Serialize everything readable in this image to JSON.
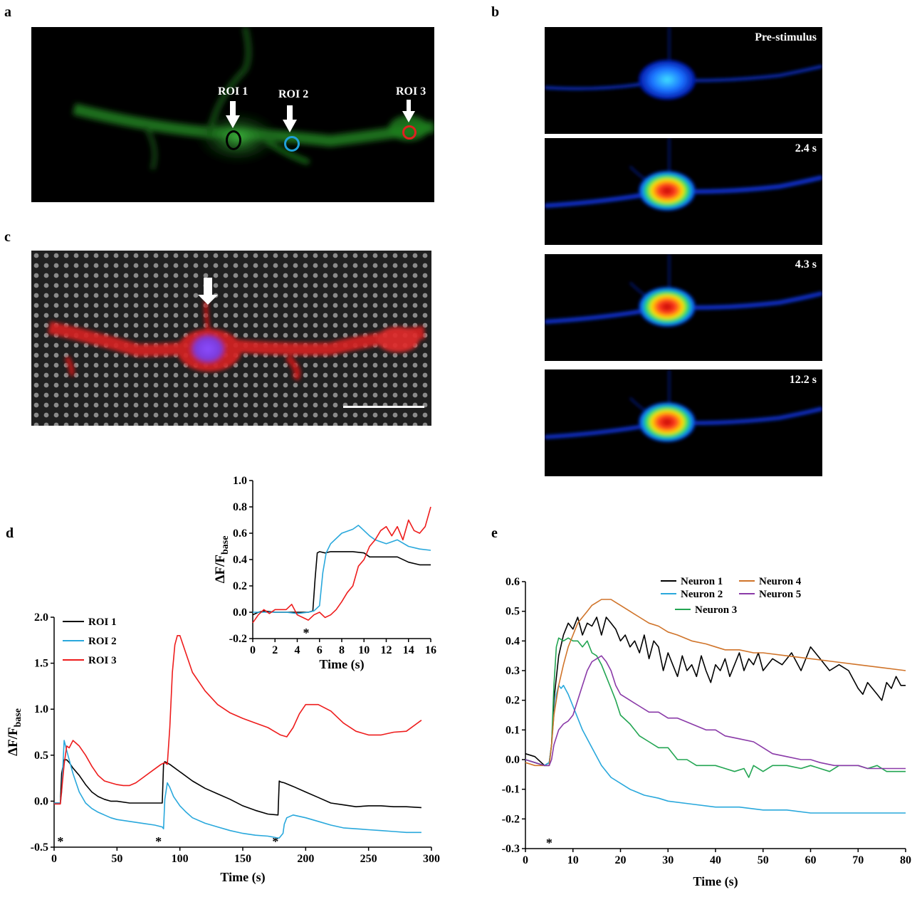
{
  "panels": {
    "a": {
      "letter": "a",
      "roi_labels": [
        "ROI 1",
        "ROI 2",
        "ROI 3"
      ],
      "roi_colors": [
        "#000000",
        "#1fa0d8",
        "#e02020"
      ]
    },
    "b": {
      "letter": "b",
      "frames": [
        "Pre-stimulus",
        "2.4 s",
        "4.3 s",
        "12.2 s"
      ]
    },
    "c": {
      "letter": "c"
    },
    "d": {
      "letter": "d"
    },
    "e": {
      "letter": "e"
    }
  },
  "chart_data": [
    {
      "id": "d-main",
      "type": "line",
      "xlabel": "Time (s)",
      "ylabel": "ΔF/Fbase",
      "xlim": [
        0,
        300
      ],
      "ylim": [
        -0.5,
        2.0
      ],
      "xticks": [
        0,
        50,
        100,
        150,
        200,
        250,
        300
      ],
      "yticks": [
        -0.5,
        0.0,
        0.5,
        1.0,
        1.5,
        2.0
      ],
      "ytick_labels": [
        "-0.5",
        "0.0",
        "0.5",
        "1.0",
        "1.5",
        "2.0"
      ],
      "stimulus_marker": "*",
      "stimulus_times": [
        5,
        83,
        176
      ],
      "legend_position": "upper-left",
      "series": [
        {
          "name": "ROI 1",
          "color": "#000000",
          "x": [
            0,
            5,
            6,
            8,
            10,
            12,
            15,
            20,
            25,
            30,
            35,
            40,
            45,
            50,
            60,
            70,
            80,
            86,
            87,
            88,
            92,
            100,
            110,
            120,
            130,
            140,
            150,
            160,
            170,
            178,
            179,
            180,
            183,
            190,
            200,
            210,
            220,
            230,
            240,
            250,
            260,
            270,
            280,
            292
          ],
          "y": [
            -0.02,
            -0.02,
            0.3,
            0.45,
            0.45,
            0.42,
            0.36,
            0.28,
            0.18,
            0.1,
            0.05,
            0.02,
            0.0,
            0.0,
            -0.02,
            -0.02,
            -0.02,
            -0.02,
            0.4,
            0.43,
            0.4,
            0.32,
            0.22,
            0.14,
            0.08,
            0.02,
            -0.05,
            -0.1,
            -0.14,
            -0.15,
            0.22,
            0.21,
            0.2,
            0.16,
            0.1,
            0.04,
            -0.02,
            -0.04,
            -0.06,
            -0.05,
            -0.05,
            -0.06,
            -0.06,
            -0.07
          ]
        },
        {
          "name": "ROI 2",
          "color": "#29a8dc",
          "x": [
            0,
            5,
            6,
            8,
            10,
            12,
            15,
            20,
            25,
            30,
            35,
            40,
            45,
            50,
            60,
            70,
            80,
            86,
            87,
            88,
            90,
            92,
            95,
            100,
            105,
            110,
            120,
            130,
            140,
            150,
            160,
            170,
            178,
            179,
            182,
            183,
            185,
            190,
            200,
            210,
            220,
            230,
            240,
            250,
            260,
            270,
            280,
            292
          ],
          "y": [
            -0.02,
            -0.02,
            0.1,
            0.66,
            0.55,
            0.45,
            0.3,
            0.1,
            -0.02,
            -0.08,
            -0.12,
            -0.15,
            -0.18,
            -0.2,
            -0.22,
            -0.24,
            -0.26,
            -0.28,
            -0.3,
            0.02,
            0.2,
            0.15,
            0.05,
            -0.05,
            -0.12,
            -0.18,
            -0.24,
            -0.28,
            -0.32,
            -0.35,
            -0.37,
            -0.38,
            -0.4,
            -0.4,
            -0.35,
            -0.25,
            -0.18,
            -0.15,
            -0.18,
            -0.22,
            -0.26,
            -0.29,
            -0.3,
            -0.31,
            -0.32,
            -0.33,
            -0.34,
            -0.34
          ]
        },
        {
          "name": "ROI 3",
          "color": "#ee1c1c",
          "x": [
            0,
            5,
            8,
            10,
            12,
            15,
            20,
            25,
            30,
            35,
            40,
            45,
            50,
            55,
            60,
            65,
            70,
            75,
            80,
            85,
            88,
            90,
            92,
            94,
            96,
            98,
            100,
            105,
            110,
            120,
            130,
            140,
            150,
            160,
            170,
            180,
            185,
            190,
            195,
            200,
            210,
            220,
            230,
            240,
            250,
            260,
            270,
            280,
            292
          ],
          "y": [
            -0.03,
            -0.03,
            0.4,
            0.6,
            0.58,
            0.66,
            0.6,
            0.5,
            0.38,
            0.28,
            0.22,
            0.2,
            0.18,
            0.17,
            0.17,
            0.2,
            0.25,
            0.3,
            0.35,
            0.4,
            0.42,
            0.4,
            0.8,
            1.4,
            1.7,
            1.8,
            1.8,
            1.6,
            1.4,
            1.2,
            1.05,
            0.96,
            0.9,
            0.85,
            0.8,
            0.72,
            0.7,
            0.8,
            0.95,
            1.05,
            1.05,
            0.98,
            0.85,
            0.76,
            0.72,
            0.72,
            0.75,
            0.76,
            0.88
          ]
        }
      ]
    },
    {
      "id": "d-inset",
      "type": "line",
      "xlabel": "Time (s)",
      "ylabel": "ΔF/Fbase",
      "xlim": [
        0,
        16
      ],
      "ylim": [
        -0.2,
        1.0
      ],
      "xticks": [
        0,
        2,
        4,
        6,
        8,
        10,
        12,
        14,
        16
      ],
      "yticks": [
        -0.2,
        0.0,
        0.2,
        0.4,
        0.6,
        0.8,
        1.0
      ],
      "ytick_labels": [
        "-0.2",
        "0.0",
        "0.2",
        "0.4",
        "0.6",
        "0.8",
        "1.0"
      ],
      "stimulus_marker": "*",
      "stimulus_times": [
        4.8
      ],
      "series": [
        {
          "name": "ROI 1",
          "color": "#000000",
          "x": [
            0,
            0.5,
            1,
            2,
            3,
            4,
            5,
            5.4,
            5.6,
            5.8,
            6.0,
            6.5,
            7,
            8,
            9,
            10,
            10.5,
            11,
            12,
            13,
            14,
            15,
            16
          ],
          "y": [
            -0.02,
            0.0,
            0.01,
            0.0,
            0.0,
            0.0,
            0.0,
            0.01,
            0.25,
            0.45,
            0.46,
            0.45,
            0.46,
            0.46,
            0.46,
            0.45,
            0.42,
            0.42,
            0.42,
            0.42,
            0.38,
            0.36,
            0.36
          ]
        },
        {
          "name": "ROI 2",
          "color": "#29a8dc",
          "x": [
            0,
            1,
            2,
            3,
            4,
            5,
            5.5,
            6.0,
            6.3,
            6.6,
            7,
            8,
            9,
            9.5,
            10,
            10.5,
            11,
            12,
            13,
            14,
            15,
            16
          ],
          "y": [
            0.0,
            0.0,
            0.0,
            0.0,
            -0.01,
            0.0,
            0.01,
            0.05,
            0.3,
            0.45,
            0.52,
            0.6,
            0.63,
            0.66,
            0.62,
            0.58,
            0.55,
            0.52,
            0.55,
            0.5,
            0.48,
            0.47
          ]
        },
        {
          "name": "ROI 3",
          "color": "#ee1c1c",
          "x": [
            0,
            0.5,
            1,
            1.5,
            2,
            2.5,
            3,
            3.5,
            4,
            4.5,
            5,
            5.5,
            6,
            6.5,
            7,
            7.5,
            8,
            8.5,
            9,
            9.5,
            10,
            10.5,
            11,
            11.5,
            12,
            12.5,
            13,
            13.5,
            14,
            14.5,
            15,
            15.5,
            16
          ],
          "y": [
            -0.08,
            -0.02,
            0.02,
            -0.01,
            0.02,
            0.02,
            0.02,
            0.06,
            -0.02,
            -0.04,
            -0.06,
            -0.02,
            0.0,
            -0.04,
            -0.02,
            0.02,
            0.08,
            0.15,
            0.2,
            0.35,
            0.4,
            0.5,
            0.55,
            0.62,
            0.65,
            0.58,
            0.65,
            0.55,
            0.7,
            0.62,
            0.6,
            0.65,
            0.8
          ]
        }
      ]
    },
    {
      "id": "e-main",
      "type": "line",
      "xlabel": "Time (s)",
      "ylabel": "",
      "xlim": [
        0,
        80
      ],
      "ylim": [
        -0.3,
        0.6
      ],
      "xticks": [
        0,
        10,
        20,
        30,
        40,
        50,
        60,
        70,
        80
      ],
      "yticks": [
        -0.3,
        -0.2,
        -0.1,
        0.0,
        0.1,
        0.2,
        0.3,
        0.4,
        0.5,
        0.6
      ],
      "ytick_labels": [
        "-0.3",
        "-0.2",
        "-0.1",
        "0.0",
        "0.1",
        "0.2",
        "0.3",
        "0.4",
        "0.5",
        "0.6"
      ],
      "stimulus_marker": "*",
      "stimulus_times": [
        5
      ],
      "legend_position": "top-center",
      "series": [
        {
          "name": "Neuron 1",
          "color": "#000000",
          "x": [
            0,
            2,
            4,
            5,
            5.5,
            6,
            7,
            8,
            9,
            10,
            11,
            12,
            13,
            14,
            15,
            16,
            17,
            18,
            19,
            20,
            21,
            22,
            23,
            24,
            25,
            26,
            27,
            28,
            29,
            30,
            31,
            32,
            33,
            34,
            35,
            36,
            37,
            38,
            39,
            40,
            41,
            42,
            43,
            44,
            45,
            46,
            47,
            48,
            49,
            50,
            52,
            54,
            56,
            58,
            60,
            62,
            64,
            66,
            68,
            70,
            71,
            72,
            73,
            74,
            75,
            76,
            77,
            78,
            79,
            80
          ],
          "y": [
            0.02,
            0.01,
            -0.02,
            -0.01,
            0.05,
            0.2,
            0.35,
            0.42,
            0.46,
            0.44,
            0.48,
            0.42,
            0.46,
            0.45,
            0.48,
            0.42,
            0.48,
            0.46,
            0.44,
            0.4,
            0.42,
            0.38,
            0.4,
            0.36,
            0.42,
            0.34,
            0.4,
            0.38,
            0.3,
            0.36,
            0.32,
            0.28,
            0.35,
            0.3,
            0.32,
            0.28,
            0.35,
            0.3,
            0.26,
            0.32,
            0.3,
            0.34,
            0.28,
            0.32,
            0.36,
            0.3,
            0.34,
            0.32,
            0.36,
            0.3,
            0.34,
            0.32,
            0.36,
            0.3,
            0.38,
            0.34,
            0.3,
            0.32,
            0.3,
            0.24,
            0.22,
            0.26,
            0.24,
            0.22,
            0.2,
            0.26,
            0.24,
            0.28,
            0.25,
            0.25
          ]
        },
        {
          "name": "Neuron 2",
          "color": "#29a8dc",
          "x": [
            0,
            2,
            4,
            5,
            5.5,
            6,
            6.5,
            7,
            7.5,
            8,
            9,
            10,
            12,
            14,
            16,
            18,
            20,
            22,
            25,
            28,
            30,
            35,
            40,
            45,
            50,
            55,
            60,
            65,
            70,
            75,
            80
          ],
          "y": [
            0.0,
            -0.01,
            -0.02,
            -0.01,
            0.05,
            0.15,
            0.22,
            0.25,
            0.24,
            0.25,
            0.22,
            0.18,
            0.1,
            0.04,
            -0.02,
            -0.06,
            -0.08,
            -0.1,
            -0.12,
            -0.13,
            -0.14,
            -0.15,
            -0.16,
            -0.16,
            -0.17,
            -0.17,
            -0.18,
            -0.18,
            -0.18,
            -0.18,
            -0.18
          ]
        },
        {
          "name": "Neuron 3",
          "color": "#22a552",
          "x": [
            0,
            2,
            4,
            5,
            5.5,
            6,
            6.5,
            7,
            8,
            9,
            10,
            11,
            12,
            13,
            14,
            15,
            16,
            17,
            18,
            19,
            20,
            22,
            24,
            26,
            28,
            30,
            32,
            34,
            36,
            38,
            40,
            42,
            44,
            46,
            47,
            48,
            50,
            52,
            55,
            58,
            60,
            62,
            64,
            66,
            68,
            70,
            72,
            74,
            76,
            78,
            80
          ],
          "y": [
            0.0,
            -0.01,
            -0.02,
            -0.02,
            0.05,
            0.25,
            0.38,
            0.41,
            0.4,
            0.41,
            0.4,
            0.4,
            0.38,
            0.4,
            0.36,
            0.35,
            0.32,
            0.28,
            0.24,
            0.2,
            0.15,
            0.12,
            0.08,
            0.06,
            0.04,
            0.04,
            0.0,
            0.0,
            -0.02,
            -0.02,
            -0.02,
            -0.03,
            -0.04,
            -0.03,
            -0.06,
            -0.02,
            -0.04,
            -0.02,
            -0.02,
            -0.03,
            -0.02,
            -0.03,
            -0.04,
            -0.02,
            -0.02,
            -0.02,
            -0.03,
            -0.02,
            -0.04,
            -0.04,
            -0.04
          ]
        },
        {
          "name": "Neuron 4",
          "color": "#d0742a",
          "x": [
            0,
            2,
            4,
            5,
            5.5,
            6,
            7,
            8,
            9,
            10,
            11,
            12,
            13,
            14,
            15,
            16,
            17,
            18,
            19,
            20,
            22,
            24,
            26,
            28,
            30,
            32,
            35,
            38,
            40,
            42,
            45,
            48,
            50,
            55,
            60,
            65,
            70,
            75,
            80
          ],
          "y": [
            -0.01,
            -0.02,
            -0.02,
            -0.02,
            0.05,
            0.15,
            0.25,
            0.32,
            0.38,
            0.42,
            0.46,
            0.48,
            0.5,
            0.52,
            0.53,
            0.54,
            0.54,
            0.54,
            0.53,
            0.52,
            0.5,
            0.48,
            0.46,
            0.45,
            0.43,
            0.42,
            0.4,
            0.39,
            0.38,
            0.37,
            0.37,
            0.36,
            0.36,
            0.35,
            0.34,
            0.33,
            0.32,
            0.31,
            0.3
          ]
        },
        {
          "name": "Neuron 5",
          "color": "#8a3aa8",
          "x": [
            0,
            2,
            4,
            5,
            5.5,
            6,
            7,
            8,
            9,
            10,
            11,
            12,
            13,
            14,
            15,
            16,
            17,
            18,
            19,
            20,
            22,
            24,
            26,
            28,
            30,
            32,
            35,
            38,
            40,
            42,
            45,
            48,
            50,
            52,
            55,
            58,
            60,
            62,
            65,
            68,
            70,
            72,
            75,
            78,
            80
          ],
          "y": [
            0.0,
            -0.01,
            -0.02,
            -0.02,
            0.0,
            0.05,
            0.1,
            0.12,
            0.13,
            0.15,
            0.2,
            0.25,
            0.3,
            0.33,
            0.34,
            0.35,
            0.33,
            0.3,
            0.25,
            0.22,
            0.2,
            0.18,
            0.16,
            0.16,
            0.14,
            0.14,
            0.12,
            0.1,
            0.1,
            0.08,
            0.07,
            0.06,
            0.04,
            0.02,
            0.01,
            0.0,
            0.0,
            -0.01,
            -0.02,
            -0.02,
            -0.02,
            -0.03,
            -0.03,
            -0.03,
            -0.03
          ]
        }
      ]
    }
  ]
}
